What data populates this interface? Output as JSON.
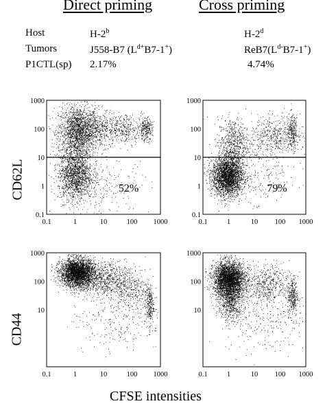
{
  "header": {
    "col_left": "Direct priming",
    "col_right": "Cross priming"
  },
  "info": {
    "labels": [
      "Host",
      "Tumors",
      "P1CTL(sp)"
    ],
    "left": {
      "host": "H-2",
      "host_sup": "b",
      "tumor_pre": "J558-B7 (L",
      "tumor_sup1": "d+",
      "tumor_mid": "B7-1",
      "tumor_sup2": "+",
      "tumor_post": ")",
      "pct": "2.17%"
    },
    "right": {
      "host": "H-2",
      "host_sup": "d",
      "tumor_pre": "ReB7(L",
      "tumor_sup1": "d-",
      "tumor_mid": "B7-1",
      "tumor_sup2": "+",
      "tumor_post": ")",
      "pct": "4.74%"
    }
  },
  "axis_labels": {
    "row1_y": "CD62L",
    "row2_y": "CD44",
    "x": "CFSE intensities"
  },
  "chart_data": [
    {
      "type": "scatter",
      "panel": "direct-priming-CD62L",
      "x_scale": "log",
      "y_scale": "log",
      "xlim": [
        0.1,
        1000
      ],
      "ylim": [
        0.1,
        1000
      ],
      "xticks": [
        "0.1",
        "1",
        "10",
        "100",
        "1000"
      ],
      "yticks": [
        "0.1",
        "1",
        "10",
        "100",
        "1000"
      ],
      "gate_line_y": 10,
      "quadrant_label": "52%",
      "clusters": [
        {
          "x": 1.3,
          "y": 80,
          "sx": 0.35,
          "sy": 0.45,
          "n": 1800
        },
        {
          "x": 1.0,
          "y": 2.5,
          "sx": 0.3,
          "sy": 0.45,
          "n": 1500
        },
        {
          "x": 8,
          "y": 100,
          "sx": 0.3,
          "sy": 0.3,
          "n": 350
        },
        {
          "x": 60,
          "y": 100,
          "sx": 0.3,
          "sy": 0.25,
          "n": 300
        },
        {
          "x": 300,
          "y": 100,
          "sx": 0.12,
          "sy": 0.2,
          "n": 250
        },
        {
          "x": 10,
          "y": 1.0,
          "sx": 0.8,
          "sy": 0.5,
          "n": 200
        }
      ]
    },
    {
      "type": "scatter",
      "panel": "cross-priming-CD62L",
      "x_scale": "log",
      "y_scale": "log",
      "xlim": [
        0.1,
        1000
      ],
      "ylim": [
        0.1,
        1000
      ],
      "xticks": [
        "0.1",
        "1",
        "10",
        "100",
        "1000"
      ],
      "yticks": [
        "0.1",
        "1",
        "10",
        "100",
        "1000"
      ],
      "gate_line_y": 10,
      "quadrant_label": "79%",
      "clusters": [
        {
          "x": 0.9,
          "y": 2.2,
          "sx": 0.3,
          "sy": 0.35,
          "n": 2600
        },
        {
          "x": 1.5,
          "y": 30,
          "sx": 0.3,
          "sy": 0.45,
          "n": 600
        },
        {
          "x": 60,
          "y": 60,
          "sx": 0.45,
          "sy": 0.35,
          "n": 450
        },
        {
          "x": 300,
          "y": 80,
          "sx": 0.12,
          "sy": 0.3,
          "n": 250
        },
        {
          "x": 20,
          "y": 2,
          "sx": 0.7,
          "sy": 0.6,
          "n": 200
        }
      ]
    },
    {
      "type": "scatter",
      "panel": "direct-priming-CD44",
      "x_scale": "log",
      "y_scale": "log",
      "xlim": [
        0.1,
        1000
      ],
      "ylim": [
        0.1,
        1000
      ],
      "xticks": [
        "0.1",
        "1",
        "10",
        "100",
        "1000"
      ],
      "yticks": [
        "10",
        "100",
        "1000"
      ],
      "clusters": [
        {
          "x": 1.2,
          "y": 200,
          "sx": 0.3,
          "sy": 0.25,
          "n": 3000
        },
        {
          "x": 10,
          "y": 120,
          "sx": 0.4,
          "sy": 0.3,
          "n": 600
        },
        {
          "x": 80,
          "y": 60,
          "sx": 0.35,
          "sy": 0.4,
          "n": 400
        },
        {
          "x": 400,
          "y": 15,
          "sx": 0.08,
          "sy": 0.35,
          "n": 250
        },
        {
          "x": 30,
          "y": 5,
          "sx": 0.8,
          "sy": 0.6,
          "n": 250
        }
      ]
    },
    {
      "type": "scatter",
      "panel": "cross-priming-CD44",
      "x_scale": "log",
      "y_scale": "log",
      "xlim": [
        0.1,
        1000
      ],
      "ylim": [
        0.1,
        1000
      ],
      "xticks": [
        "0.1",
        "1",
        "10",
        "100",
        "1000"
      ],
      "yticks": [
        "10",
        "100",
        "1000"
      ],
      "clusters": [
        {
          "x": 1.0,
          "y": 120,
          "sx": 0.3,
          "sy": 0.3,
          "n": 3000
        },
        {
          "x": 1.2,
          "y": 20,
          "sx": 0.25,
          "sy": 0.35,
          "n": 700
        },
        {
          "x": 30,
          "y": 80,
          "sx": 0.45,
          "sy": 0.35,
          "n": 500
        },
        {
          "x": 300,
          "y": 30,
          "sx": 0.1,
          "sy": 0.35,
          "n": 300
        },
        {
          "x": 30,
          "y": 5,
          "sx": 0.8,
          "sy": 0.6,
          "n": 250
        }
      ]
    }
  ]
}
